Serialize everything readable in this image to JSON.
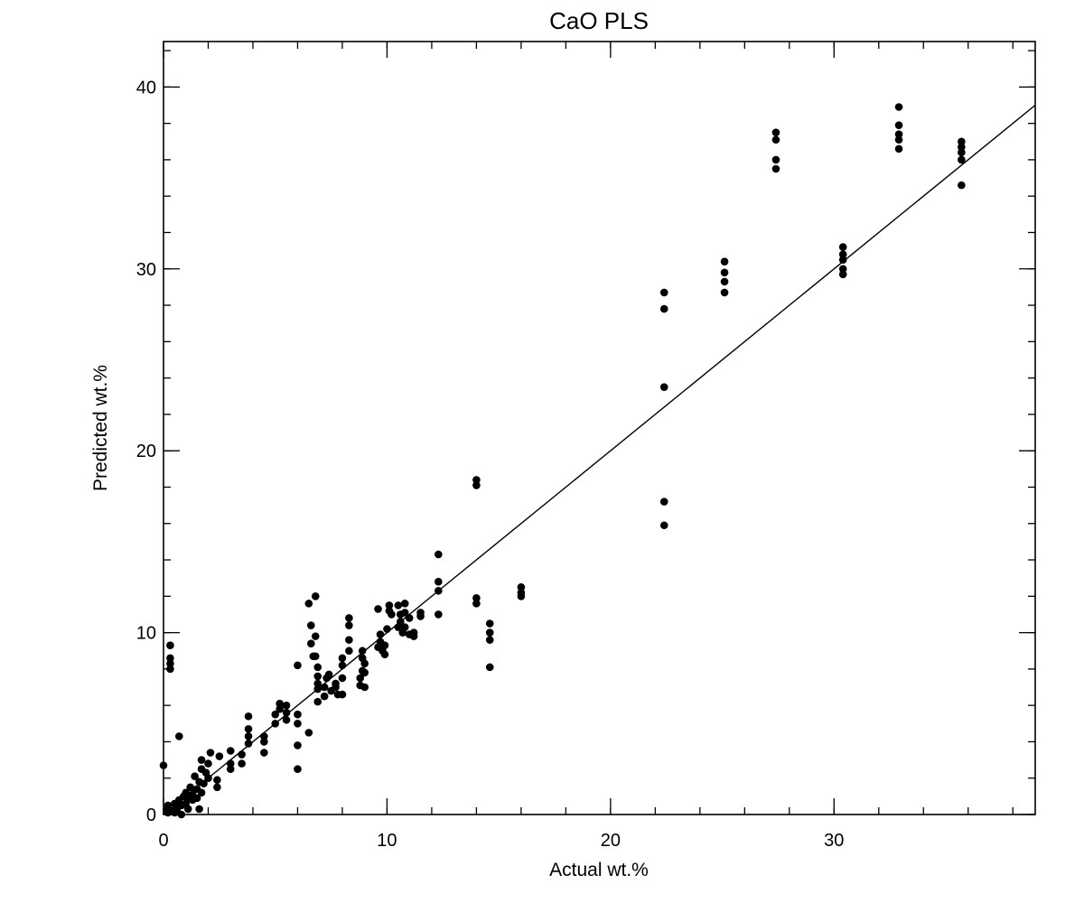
{
  "chart_data": {
    "type": "scatter",
    "title": "CaO PLS",
    "xlabel": "Actual wt.%",
    "ylabel": "Predicted wt.%",
    "xlim": [
      0,
      39
    ],
    "ylim": [
      0,
      42.5
    ],
    "x_ticks": [
      0,
      10,
      20,
      30
    ],
    "y_ticks": [
      0,
      10,
      20,
      30,
      40
    ],
    "x_minor_step": 2,
    "y_minor_step": 2,
    "grid": false,
    "fit_line": {
      "from": [
        0,
        0
      ],
      "to": [
        39,
        39
      ]
    },
    "points": [
      [
        0.0,
        2.7
      ],
      [
        0.2,
        0.1
      ],
      [
        0.2,
        0.3
      ],
      [
        0.2,
        0.5
      ],
      [
        0.3,
        9.3
      ],
      [
        0.3,
        8.6
      ],
      [
        0.3,
        8.3
      ],
      [
        0.3,
        8.0
      ],
      [
        0.4,
        0.2
      ],
      [
        0.5,
        0.1
      ],
      [
        0.5,
        0.6
      ],
      [
        0.6,
        0.3
      ],
      [
        0.7,
        0.8
      ],
      [
        0.7,
        4.3
      ],
      [
        0.8,
        0.0
      ],
      [
        0.8,
        0.5
      ],
      [
        0.9,
        1.0
      ],
      [
        1.0,
        0.6
      ],
      [
        1.0,
        1.2
      ],
      [
        1.1,
        0.9
      ],
      [
        1.1,
        0.3
      ],
      [
        1.2,
        1.5
      ],
      [
        1.3,
        0.8
      ],
      [
        1.3,
        1.1
      ],
      [
        1.4,
        2.1
      ],
      [
        1.5,
        1.4
      ],
      [
        1.5,
        0.9
      ],
      [
        1.6,
        1.8
      ],
      [
        1.6,
        0.3
      ],
      [
        1.7,
        1.2
      ],
      [
        1.7,
        2.5
      ],
      [
        1.7,
        3.0
      ],
      [
        1.8,
        1.7
      ],
      [
        1.9,
        2.3
      ],
      [
        2.0,
        2.8
      ],
      [
        2.0,
        2.0
      ],
      [
        2.1,
        3.4
      ],
      [
        2.4,
        1.5
      ],
      [
        2.4,
        1.9
      ],
      [
        2.5,
        3.2
      ],
      [
        3.0,
        2.5
      ],
      [
        3.0,
        3.5
      ],
      [
        3.0,
        2.8
      ],
      [
        3.5,
        2.8
      ],
      [
        3.5,
        3.3
      ],
      [
        3.8,
        5.4
      ],
      [
        3.8,
        4.7
      ],
      [
        3.8,
        4.3
      ],
      [
        3.8,
        3.9
      ],
      [
        4.5,
        3.4
      ],
      [
        4.5,
        4.0
      ],
      [
        4.5,
        4.3
      ],
      [
        5.0,
        5.0
      ],
      [
        5.0,
        5.5
      ],
      [
        5.2,
        6.1
      ],
      [
        5.2,
        5.8
      ],
      [
        5.5,
        5.2
      ],
      [
        5.5,
        5.6
      ],
      [
        5.5,
        6.0
      ],
      [
        6.0,
        8.2
      ],
      [
        6.0,
        5.5
      ],
      [
        6.0,
        5.0
      ],
      [
        6.0,
        3.8
      ],
      [
        6.0,
        2.5
      ],
      [
        6.5,
        4.5
      ],
      [
        6.5,
        11.6
      ],
      [
        6.6,
        10.4
      ],
      [
        6.6,
        9.4
      ],
      [
        6.7,
        8.7
      ],
      [
        6.8,
        12.0
      ],
      [
        6.8,
        9.8
      ],
      [
        6.8,
        8.7
      ],
      [
        6.9,
        8.1
      ],
      [
        6.9,
        7.6
      ],
      [
        6.9,
        7.2
      ],
      [
        6.9,
        6.9
      ],
      [
        6.9,
        6.2
      ],
      [
        7.2,
        6.5
      ],
      [
        7.2,
        7.0
      ],
      [
        7.3,
        7.5
      ],
      [
        7.4,
        7.7
      ],
      [
        7.5,
        6.8
      ],
      [
        7.7,
        7.0
      ],
      [
        7.7,
        7.2
      ],
      [
        7.8,
        6.6
      ],
      [
        8.0,
        7.5
      ],
      [
        8.0,
        6.6
      ],
      [
        8.0,
        8.2
      ],
      [
        8.0,
        8.6
      ],
      [
        8.3,
        10.8
      ],
      [
        8.3,
        10.4
      ],
      [
        8.3,
        9.6
      ],
      [
        8.3,
        9.0
      ],
      [
        8.8,
        7.1
      ],
      [
        8.8,
        7.5
      ],
      [
        8.9,
        7.9
      ],
      [
        8.9,
        8.6
      ],
      [
        8.9,
        9.0
      ],
      [
        9.0,
        7.0
      ],
      [
        9.0,
        8.3
      ],
      [
        9.0,
        7.8
      ],
      [
        9.6,
        11.3
      ],
      [
        9.6,
        9.2
      ],
      [
        9.7,
        9.5
      ],
      [
        9.7,
        9.9
      ],
      [
        9.8,
        9.0
      ],
      [
        9.9,
        9.3
      ],
      [
        9.9,
        8.8
      ],
      [
        10.0,
        10.2
      ],
      [
        10.1,
        11.2
      ],
      [
        10.1,
        11.5
      ],
      [
        10.2,
        11.0
      ],
      [
        10.5,
        10.3
      ],
      [
        10.5,
        11.5
      ],
      [
        10.6,
        11.0
      ],
      [
        10.6,
        10.6
      ],
      [
        10.7,
        10.0
      ],
      [
        10.8,
        11.1
      ],
      [
        10.8,
        11.6
      ],
      [
        10.8,
        10.3
      ],
      [
        11.0,
        9.9
      ],
      [
        11.0,
        10.8
      ],
      [
        11.2,
        9.8
      ],
      [
        11.2,
        10.0
      ],
      [
        11.5,
        10.9
      ],
      [
        11.5,
        11.1
      ],
      [
        12.3,
        14.3
      ],
      [
        12.3,
        12.8
      ],
      [
        12.3,
        12.3
      ],
      [
        12.3,
        11.0
      ],
      [
        14.0,
        18.4
      ],
      [
        14.0,
        18.1
      ],
      [
        14.0,
        11.9
      ],
      [
        14.0,
        11.6
      ],
      [
        14.6,
        10.5
      ],
      [
        14.6,
        10.0
      ],
      [
        14.6,
        9.6
      ],
      [
        14.6,
        8.1
      ],
      [
        16.0,
        12.5
      ],
      [
        16.0,
        12.2
      ],
      [
        16.0,
        12.0
      ],
      [
        22.4,
        28.7
      ],
      [
        22.4,
        27.8
      ],
      [
        22.4,
        23.5
      ],
      [
        22.4,
        17.2
      ],
      [
        22.4,
        15.9
      ],
      [
        25.1,
        30.4
      ],
      [
        25.1,
        29.8
      ],
      [
        25.1,
        29.3
      ],
      [
        25.1,
        28.7
      ],
      [
        27.4,
        37.5
      ],
      [
        27.4,
        37.1
      ],
      [
        27.4,
        36.0
      ],
      [
        27.4,
        35.5
      ],
      [
        30.4,
        31.2
      ],
      [
        30.4,
        30.8
      ],
      [
        30.4,
        30.5
      ],
      [
        30.4,
        30.0
      ],
      [
        30.4,
        29.7
      ],
      [
        32.9,
        38.9
      ],
      [
        32.9,
        37.9
      ],
      [
        32.9,
        37.4
      ],
      [
        32.9,
        37.1
      ],
      [
        32.9,
        36.6
      ],
      [
        35.7,
        37.0
      ],
      [
        35.7,
        36.7
      ],
      [
        35.7,
        36.4
      ],
      [
        35.7,
        36.0
      ],
      [
        35.7,
        34.6
      ]
    ]
  }
}
